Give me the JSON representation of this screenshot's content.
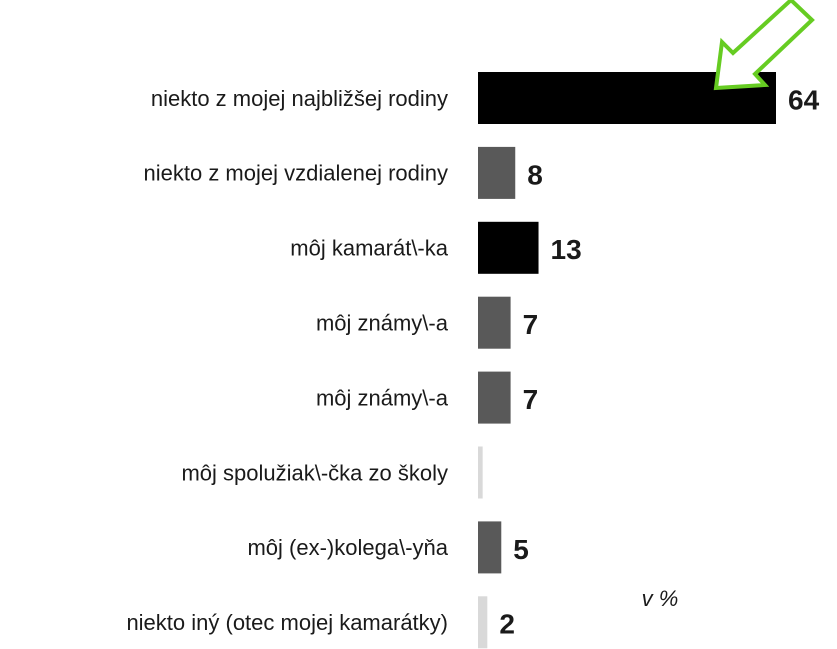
{
  "chart_data": {
    "type": "bar",
    "orientation": "horizontal",
    "categories": [
      "niekto z mojej najbližšej rodiny",
      "niekto z mojej vzdialenej rodiny",
      "môj kamarát\\-ka",
      "môj známy\\-a",
      "môj známy\\-a",
      "môj spolužiak\\-čka zo školy",
      "môj (ex-)kolega\\-yňa",
      "niekto iný (otec mojej kamarátky)"
    ],
    "values": [
      64,
      8,
      13,
      7,
      7,
      1,
      5,
      2
    ],
    "value_labels": [
      "64",
      "8",
      "13",
      "7",
      "7",
      null,
      "5",
      "2"
    ],
    "colors": [
      "#000000",
      "#595959",
      "#000000",
      "#595959",
      "#595959",
      "#d9d9d9",
      "#595959",
      "#d9d9d9"
    ],
    "xlim": [
      0,
      64
    ],
    "annotation": "v %"
  }
}
